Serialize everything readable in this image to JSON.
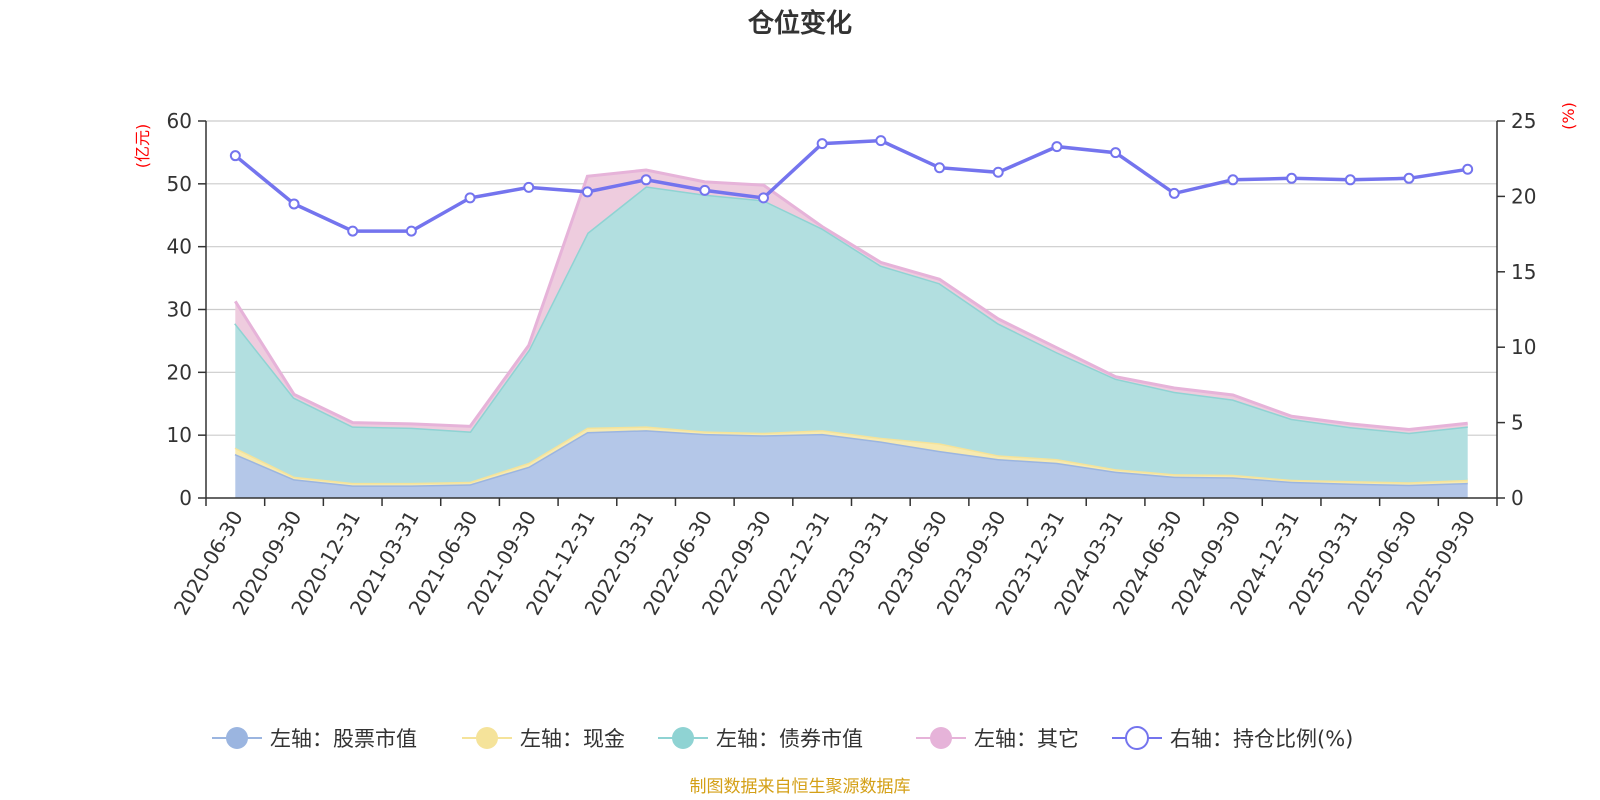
{
  "chart_data": {
    "type": "area",
    "title": "仓位变化",
    "left_axis_unit": "(亿元)",
    "right_axis_unit": "(%)",
    "categories": [
      "2020-06-30",
      "2020-09-30",
      "2020-12-31",
      "2021-03-31",
      "2021-06-30",
      "2021-09-30",
      "2021-12-31",
      "2022-03-31",
      "2022-06-30",
      "2022-09-30",
      "2022-12-31",
      "2023-03-31",
      "2023-06-30",
      "2023-09-30",
      "2023-12-31",
      "2024-03-31",
      "2024-06-30",
      "2024-09-30",
      "2024-12-31",
      "2025-03-31",
      "2025-06-30",
      "2025-09-30"
    ],
    "left_ylim": [
      0,
      60
    ],
    "left_ticks": [
      "0",
      "10",
      "20",
      "30",
      "40",
      "50",
      "60"
    ],
    "right_ylim": [
      0,
      25
    ],
    "right_ticks": [
      "0",
      "5",
      "10",
      "15",
      "20",
      "25"
    ],
    "series": [
      {
        "name": "左轴：股票市值",
        "axis": "left",
        "stack": true,
        "color": "#9bb5e0",
        "fill": "#b4c7e8",
        "values": [
          7.0,
          3.0,
          2.0,
          2.0,
          2.2,
          5.0,
          10.5,
          10.8,
          10.2,
          10.0,
          10.2,
          9.0,
          7.5,
          6.2,
          5.6,
          4.2,
          3.4,
          3.3,
          2.6,
          2.3,
          2.1,
          2.4
        ]
      },
      {
        "name": "左轴：现金",
        "axis": "left",
        "stack": true,
        "color": "#f5e39a",
        "fill": "#f7eab0",
        "values": [
          1.0,
          0.4,
          0.4,
          0.4,
          0.4,
          0.6,
          0.7,
          0.6,
          0.4,
          0.4,
          0.6,
          0.6,
          1.2,
          0.6,
          0.6,
          0.4,
          0.4,
          0.4,
          0.3,
          0.4,
          0.4,
          0.5
        ]
      },
      {
        "name": "左轴：债券市值",
        "axis": "left",
        "stack": true,
        "color": "#8fd3d3",
        "fill": "#b2dfe0",
        "values": [
          19.8,
          12.6,
          9.0,
          8.8,
          8.0,
          18.0,
          31.0,
          38.2,
          37.7,
          37.0,
          32.1,
          27.4,
          25.5,
          21.0,
          17.0,
          14.4,
          13.1,
          12.0,
          9.7,
          8.6,
          7.9,
          8.5
        ]
      },
      {
        "name": "左轴：其它",
        "axis": "left",
        "stack": true,
        "color": "#e6b3d9",
        "fill": "#eeccde",
        "values": [
          3.5,
          0.5,
          0.6,
          0.6,
          0.8,
          0.7,
          9.0,
          2.6,
          2.0,
          2.4,
          0.3,
          0.5,
          0.6,
          0.7,
          0.7,
          0.3,
          0.6,
          0.7,
          0.4,
          0.5,
          0.5,
          0.5
        ]
      },
      {
        "name": "右轴：持仓比例(%)",
        "axis": "right",
        "stack": false,
        "color": "#7474ee",
        "values": [
          22.7,
          19.5,
          17.7,
          17.7,
          19.9,
          20.6,
          20.3,
          21.1,
          20.4,
          19.9,
          23.5,
          23.7,
          21.9,
          21.6,
          23.3,
          22.9,
          20.2,
          21.1,
          21.2,
          21.1,
          21.2,
          21.8
        ]
      }
    ],
    "legend_position": "bottom"
  },
  "source_note": "制图数据来自恒生聚源数据库",
  "colors": {
    "axis": "#333333",
    "grid": "#cccccc",
    "unit_label": "#ff0000",
    "source_note": "#d4a017"
  }
}
